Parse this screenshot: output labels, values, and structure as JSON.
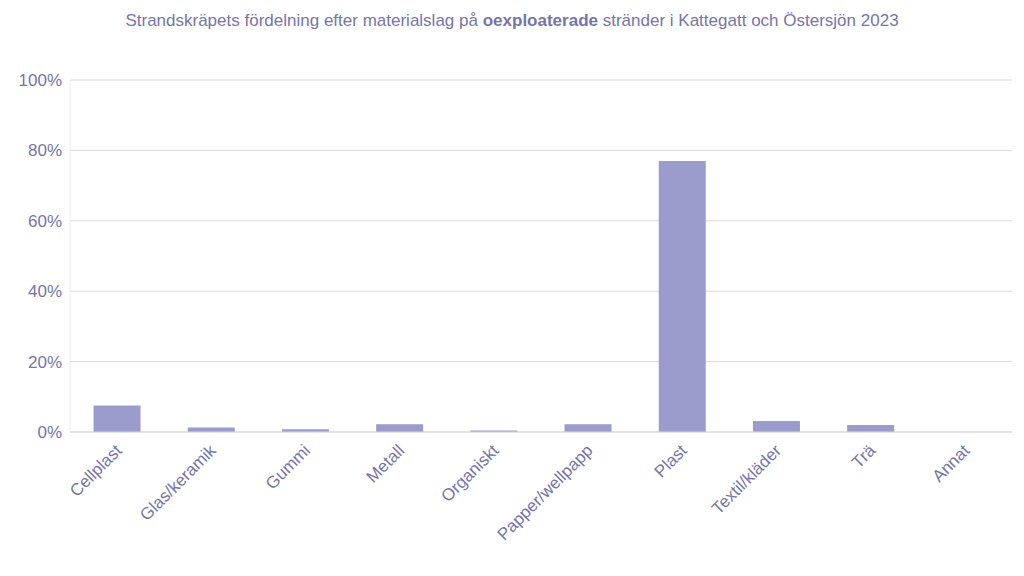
{
  "chart_data": {
    "type": "bar",
    "title": "Strandskräpets fördelning efter materialslag på oexploaterade stränder i Kattegatt och Östersjön 2023",
    "categories": [
      "Cellplast",
      "Glas/keramik",
      "Gummi",
      "Metall",
      "Organiskt",
      "Papper/wellpapp",
      "Plast",
      "Textil/kläder",
      "Trä",
      "Annat"
    ],
    "values": [
      7.5,
      1.3,
      0.8,
      2.2,
      0.4,
      2.2,
      77,
      3.1,
      2,
      0
    ],
    "color": "#9b9bcc",
    "ylim": [
      0,
      100
    ],
    "yticks": [
      {
        "value": 0,
        "label": "0%"
      },
      {
        "value": 20,
        "label": "20%"
      },
      {
        "value": 40,
        "label": "40%"
      },
      {
        "value": 60,
        "label": "60%"
      },
      {
        "value": 80,
        "label": "80%"
      },
      {
        "value": 100,
        "label": "100%"
      }
    ],
    "grid": true
  }
}
